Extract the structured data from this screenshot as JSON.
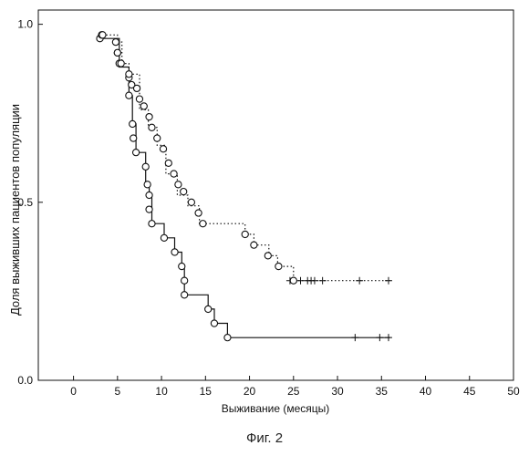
{
  "caption": "Фиг. 2",
  "chart_data": {
    "type": "line",
    "title": "",
    "xlabel": "Выживание (месяцы)",
    "ylabel": "Доля выживших пациентов популяции",
    "xlim": [
      -4,
      50
    ],
    "ylim": [
      0,
      1.04
    ],
    "xticks": [
      0,
      5,
      10,
      15,
      20,
      25,
      30,
      35,
      40,
      45,
      50
    ],
    "yticks": [
      0.0,
      0.5,
      1.0
    ],
    "ytick_labels": [
      "0.0",
      "0.5",
      "1.0"
    ],
    "grid": false,
    "legend": "none",
    "series": [
      {
        "style": "solid",
        "color": "#111111",
        "steps": [
          [
            3,
            0.96
          ],
          [
            5.2,
            0.96
          ],
          [
            5.2,
            0.88
          ],
          [
            6.3,
            0.88
          ],
          [
            6.3,
            0.8
          ],
          [
            6.7,
            0.8
          ],
          [
            6.7,
            0.72
          ],
          [
            7.1,
            0.72
          ],
          [
            7.1,
            0.64
          ],
          [
            8.2,
            0.64
          ],
          [
            8.2,
            0.55
          ],
          [
            8.6,
            0.55
          ],
          [
            8.6,
            0.52
          ],
          [
            8.9,
            0.52
          ],
          [
            8.9,
            0.44
          ],
          [
            10.3,
            0.44
          ],
          [
            10.3,
            0.4
          ],
          [
            11.5,
            0.4
          ],
          [
            11.5,
            0.36
          ],
          [
            12.3,
            0.36
          ],
          [
            12.3,
            0.32
          ],
          [
            12.6,
            0.32
          ],
          [
            12.6,
            0.24
          ],
          [
            15.3,
            0.24
          ],
          [
            15.3,
            0.2
          ],
          [
            16.0,
            0.2
          ],
          [
            16.0,
            0.16
          ],
          [
            17.5,
            0.16
          ],
          [
            17.5,
            0.12
          ],
          [
            36,
            0.12
          ]
        ],
        "events": [
          [
            3,
            0.96
          ],
          [
            3.2,
            0.97
          ],
          [
            5.0,
            0.92
          ],
          [
            5.2,
            0.89
          ],
          [
            6.3,
            0.85
          ],
          [
            6.3,
            0.8
          ],
          [
            6.7,
            0.72
          ],
          [
            6.8,
            0.68
          ],
          [
            7.1,
            0.64
          ],
          [
            8.2,
            0.6
          ],
          [
            8.4,
            0.55
          ],
          [
            8.6,
            0.52
          ],
          [
            8.6,
            0.48
          ],
          [
            8.9,
            0.44
          ],
          [
            10.3,
            0.4
          ],
          [
            11.5,
            0.36
          ],
          [
            12.3,
            0.32
          ],
          [
            12.6,
            0.28
          ],
          [
            12.6,
            0.24
          ],
          [
            15.3,
            0.2
          ],
          [
            16.0,
            0.16
          ],
          [
            17.5,
            0.12
          ]
        ],
        "censored": [
          32,
          34.8,
          35.8
        ]
      },
      {
        "style": "dotted",
        "color": "#111111",
        "steps": [
          [
            3.3,
            0.97
          ],
          [
            5.0,
            0.97
          ],
          [
            5.0,
            0.95
          ],
          [
            5.5,
            0.95
          ],
          [
            5.5,
            0.89
          ],
          [
            6.3,
            0.89
          ],
          [
            6.3,
            0.86
          ],
          [
            7.5,
            0.86
          ],
          [
            7.5,
            0.76
          ],
          [
            8.5,
            0.76
          ],
          [
            8.5,
            0.71
          ],
          [
            9.5,
            0.71
          ],
          [
            9.5,
            0.66
          ],
          [
            10.5,
            0.66
          ],
          [
            10.5,
            0.58
          ],
          [
            11.8,
            0.58
          ],
          [
            11.8,
            0.52
          ],
          [
            13.0,
            0.52
          ],
          [
            13.0,
            0.49
          ],
          [
            14.3,
            0.49
          ],
          [
            14.3,
            0.44
          ],
          [
            19.5,
            0.44
          ],
          [
            19.5,
            0.41
          ],
          [
            20.5,
            0.41
          ],
          [
            20.5,
            0.38
          ],
          [
            22.2,
            0.38
          ],
          [
            22.2,
            0.35
          ],
          [
            23.2,
            0.35
          ],
          [
            23.2,
            0.32
          ],
          [
            25.0,
            0.32
          ],
          [
            25.0,
            0.28
          ],
          [
            36,
            0.28
          ]
        ],
        "events": [
          [
            3.3,
            0.97
          ],
          [
            4.8,
            0.95
          ],
          [
            5.0,
            0.92
          ],
          [
            5.4,
            0.89
          ],
          [
            6.3,
            0.86
          ],
          [
            6.6,
            0.83
          ],
          [
            7.2,
            0.82
          ],
          [
            7.5,
            0.79
          ],
          [
            8.0,
            0.77
          ],
          [
            8.6,
            0.74
          ],
          [
            8.9,
            0.71
          ],
          [
            9.5,
            0.68
          ],
          [
            10.2,
            0.65
          ],
          [
            10.8,
            0.61
          ],
          [
            11.4,
            0.58
          ],
          [
            11.9,
            0.55
          ],
          [
            12.5,
            0.53
          ],
          [
            13.4,
            0.5
          ],
          [
            14.2,
            0.47
          ],
          [
            14.7,
            0.44
          ],
          [
            19.5,
            0.41
          ],
          [
            20.5,
            0.38
          ],
          [
            22.1,
            0.35
          ],
          [
            23.3,
            0.32
          ],
          [
            25.0,
            0.28
          ]
        ],
        "censored": [
          24.6,
          25.8,
          26.6,
          27.0,
          27.4,
          28.3,
          32.5,
          35.8
        ]
      }
    ]
  }
}
